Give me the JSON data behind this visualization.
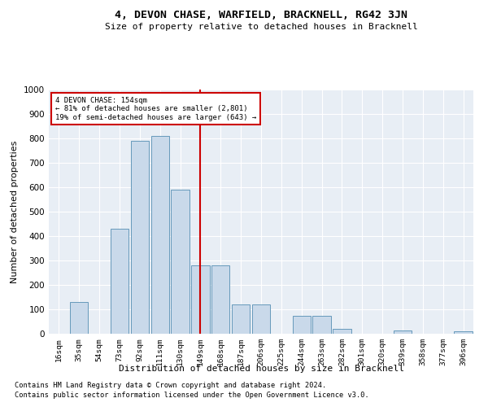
{
  "title": "4, DEVON CHASE, WARFIELD, BRACKNELL, RG42 3JN",
  "subtitle": "Size of property relative to detached houses in Bracknell",
  "xlabel": "Distribution of detached houses by size in Bracknell",
  "ylabel": "Number of detached properties",
  "categories": [
    "16sqm",
    "35sqm",
    "54sqm",
    "73sqm",
    "92sqm",
    "111sqm",
    "130sqm",
    "149sqm",
    "168sqm",
    "187sqm",
    "206sqm",
    "225sqm",
    "244sqm",
    "263sqm",
    "282sqm",
    "301sqm",
    "320sqm",
    "339sqm",
    "358sqm",
    "377sqm",
    "396sqm"
  ],
  "values": [
    0,
    130,
    0,
    430,
    790,
    810,
    590,
    280,
    280,
    120,
    120,
    0,
    75,
    75,
    20,
    0,
    0,
    15,
    0,
    0,
    10
  ],
  "bar_color": "#c9d9ea",
  "bar_edge_color": "#6699bb",
  "pct_smaller": "81% of detached houses are smaller (2,801)",
  "pct_larger": "19% of semi-detached houses are larger (643)",
  "annotation_box_color": "#cc0000",
  "ylim": [
    0,
    1000
  ],
  "yticks": [
    0,
    100,
    200,
    300,
    400,
    500,
    600,
    700,
    800,
    900,
    1000
  ],
  "property_line_x": 7,
  "footnote1": "Contains HM Land Registry data © Crown copyright and database right 2024.",
  "footnote2": "Contains public sector information licensed under the Open Government Licence v3.0.",
  "plot_bg_color": "#e8eef5"
}
